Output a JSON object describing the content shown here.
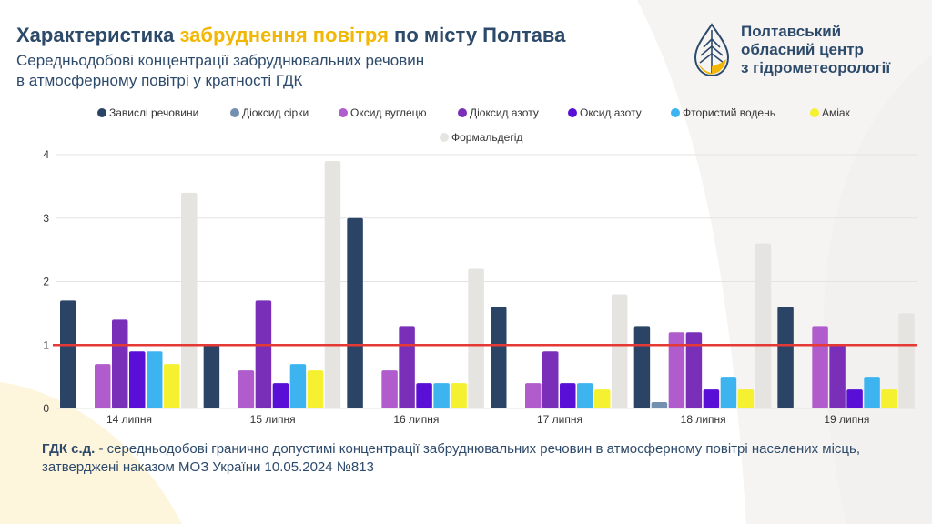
{
  "title": {
    "part1": "Характеристика ",
    "highlight": "забруднення повітря",
    "part2": " по місту Полтава"
  },
  "subtitle": {
    "line1": "Середньодобові концентрації забруднювальних речовин",
    "line2": "в атмосферному повітрі у кратності ГДК"
  },
  "org": {
    "line1": "Полтавський",
    "line2": "обласний центр",
    "line3": "з гідрометеорології",
    "logo_icon": "drop-leaf-logo-icon"
  },
  "footnote": {
    "term": "ГДК с.д.",
    "text": " - середньодобові гранично допустимі концентрації забруднювальних речовин в атмосферному повітрі населених місць, затверджені наказом МОЗ України 10.05.2024 №813"
  },
  "colors": {
    "accent": "#f2b705",
    "text": "#2d4a6b",
    "limit_line": "#e53935"
  },
  "chart_data": {
    "type": "bar",
    "categories": [
      "14 липня",
      "15 липня",
      "16 липня",
      "17 липня",
      "18 липня",
      "19 липня"
    ],
    "series": [
      {
        "name": "Завислі речовини",
        "color": "#2b4466",
        "values": [
          1.7,
          1.0,
          3.0,
          1.6,
          1.3,
          1.6
        ]
      },
      {
        "name": "Діоксид сірки",
        "color": "#7490b0",
        "values": [
          0,
          0,
          0,
          0,
          0.1,
          0
        ]
      },
      {
        "name": "Оксид вуглецю",
        "color": "#b05ccc",
        "values": [
          0.7,
          0.6,
          0.6,
          0.4,
          1.2,
          1.3
        ]
      },
      {
        "name": "Діоксид азоту",
        "color": "#7a2fb8",
        "values": [
          1.4,
          1.7,
          1.3,
          0.9,
          1.2,
          1.0
        ]
      },
      {
        "name": "Оксид азоту",
        "color": "#5a0fd6",
        "values": [
          0.9,
          0.4,
          0.4,
          0.4,
          0.3,
          0.3
        ]
      },
      {
        "name": "Фтористий водень",
        "color": "#3db4f0",
        "values": [
          0.9,
          0.7,
          0.4,
          0.4,
          0.5,
          0.5
        ]
      },
      {
        "name": "Аміак",
        "color": "#f5f030",
        "values": [
          0.7,
          0.6,
          0.4,
          0.3,
          0.3,
          0.3
        ]
      },
      {
        "name": "Формальдегід",
        "color": "#e6e4e0",
        "values": [
          3.4,
          3.9,
          2.2,
          1.8,
          2.6,
          1.5
        ]
      }
    ],
    "yticks": [
      0,
      1,
      2,
      3,
      4
    ],
    "ylim": [
      0,
      4
    ],
    "reference_line": 1,
    "grid": true,
    "legend_position": "top"
  }
}
